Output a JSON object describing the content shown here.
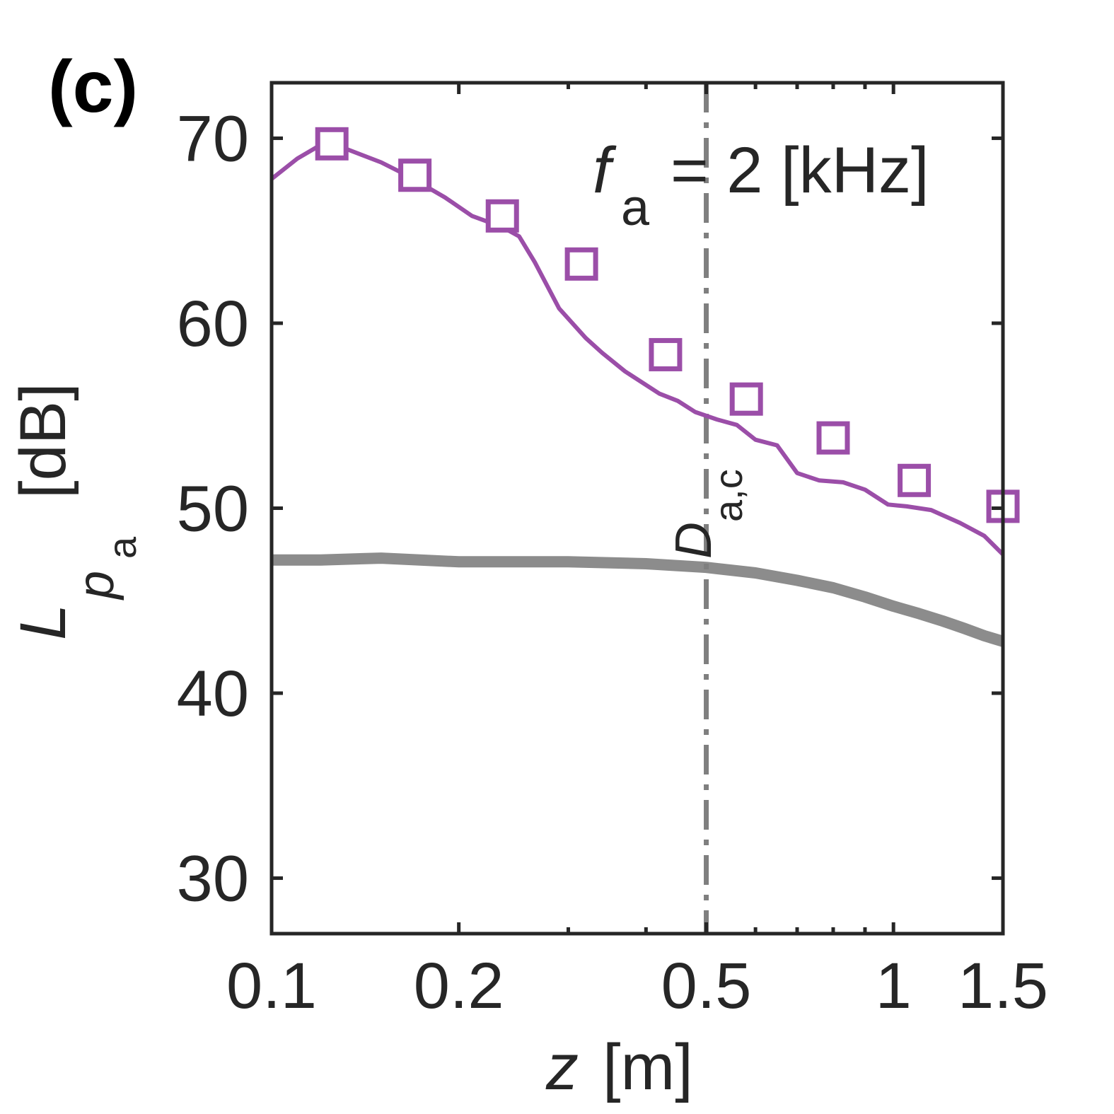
{
  "panel_label": "(c)",
  "annotation": {
    "f_symbol": "f",
    "f_subscript": "a",
    "equals_text": "= 2 [kHz]",
    "vline_symbol": "D",
    "vline_subscript": "a,c"
  },
  "colors": {
    "measured": "#9b4ea8",
    "reference": "#8c8c8c",
    "vline": "#7f7f7f",
    "axis": "#262626"
  },
  "chart_data": {
    "type": "line",
    "xlabel": {
      "symbol": "z",
      "unit": "[m]"
    },
    "ylabel": {
      "symbol": "L",
      "sub1": "p",
      "sub2": "a",
      "unit": "[dB]"
    },
    "xscale": "log",
    "xlim": [
      0.1,
      1.5
    ],
    "ylim": [
      27,
      73
    ],
    "xticks": [
      {
        "value": 0.1,
        "label": "0.1"
      },
      {
        "value": 0.2,
        "label": "0.2"
      },
      {
        "value": 0.5,
        "label": "0.5"
      },
      {
        "value": 1,
        "label": "1"
      },
      {
        "value": 1.5,
        "label": "1.5"
      }
    ],
    "x_minor_ticks": [
      0.3,
      0.4,
      0.6,
      0.7,
      0.8,
      0.9
    ],
    "yticks": [
      {
        "value": 30,
        "label": "30"
      },
      {
        "value": 40,
        "label": "40"
      },
      {
        "value": 50,
        "label": "50"
      },
      {
        "value": 60,
        "label": "60"
      },
      {
        "value": 70,
        "label": "70"
      }
    ],
    "vline_x": 0.5,
    "series": [
      {
        "style": "line",
        "color": "#9b4ea8",
        "x": [
          0.1,
          0.11,
          0.118,
          0.13,
          0.15,
          0.165,
          0.19,
          0.21,
          0.235,
          0.25,
          0.265,
          0.29,
          0.32,
          0.34,
          0.37,
          0.42,
          0.45,
          0.48,
          0.52,
          0.56,
          0.6,
          0.65,
          0.7,
          0.76,
          0.83,
          0.9,
          0.98,
          1.05,
          1.15,
          1.28,
          1.4,
          1.5
        ],
        "y": [
          67.8,
          68.9,
          69.5,
          69.5,
          68.7,
          68.0,
          66.8,
          65.8,
          65.2,
          64.7,
          63.3,
          60.8,
          59.2,
          58.4,
          57.4,
          56.2,
          55.8,
          55.2,
          54.8,
          54.5,
          53.7,
          53.4,
          51.9,
          51.5,
          51.4,
          51.0,
          50.2,
          50.1,
          49.9,
          49.2,
          48.5,
          47.5
        ]
      },
      {
        "style": "markers",
        "marker": "square-open",
        "color": "#9b4ea8",
        "x": [
          0.125,
          0.17,
          0.235,
          0.315,
          0.43,
          0.58,
          0.8,
          1.08,
          1.5
        ],
        "y": [
          69.7,
          68.0,
          65.8,
          63.2,
          58.3,
          55.9,
          53.8,
          51.5,
          50.1
        ]
      },
      {
        "style": "thick-line",
        "color": "#8c8c8c",
        "x": [
          0.1,
          0.12,
          0.15,
          0.2,
          0.3,
          0.4,
          0.5,
          0.6,
          0.7,
          0.8,
          0.9,
          1.0,
          1.1,
          1.2,
          1.3,
          1.4,
          1.5
        ],
        "y": [
          47.2,
          47.2,
          47.3,
          47.1,
          47.1,
          47.0,
          46.8,
          46.5,
          46.1,
          45.7,
          45.2,
          44.7,
          44.3,
          43.9,
          43.5,
          43.1,
          42.8
        ]
      }
    ]
  }
}
